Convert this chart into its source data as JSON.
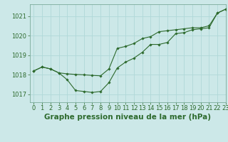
{
  "title": "Graphe pression niveau de la mer (hPa)",
  "background_color": "#cce8e8",
  "grid_color": "#b0d8d8",
  "line_color": "#2d6a2d",
  "marker_color": "#2d6a2d",
  "xlim": [
    -0.5,
    23
  ],
  "ylim": [
    1016.6,
    1021.6
  ],
  "yticks": [
    1017,
    1018,
    1019,
    1020,
    1021
  ],
  "xticks": [
    0,
    1,
    2,
    3,
    4,
    5,
    6,
    7,
    8,
    9,
    10,
    11,
    12,
    13,
    14,
    15,
    16,
    17,
    18,
    19,
    20,
    21,
    22,
    23
  ],
  "series1_x": [
    0,
    1,
    2,
    3,
    4,
    5,
    6,
    7,
    8,
    9,
    10,
    11,
    12,
    13,
    14,
    15,
    16,
    17,
    18,
    19,
    20,
    21,
    22,
    23
  ],
  "series1_y": [
    1018.2,
    1018.4,
    1018.3,
    1018.1,
    1017.75,
    1017.2,
    1017.15,
    1017.1,
    1017.15,
    1017.6,
    1018.35,
    1018.65,
    1018.85,
    1019.15,
    1019.55,
    1019.55,
    1019.65,
    1020.1,
    1020.15,
    1020.3,
    1020.35,
    1020.4,
    1021.15,
    1021.35
  ],
  "series2_x": [
    0,
    1,
    2,
    3,
    4,
    5,
    6,
    7,
    8,
    9,
    10,
    11,
    12,
    13,
    14,
    15,
    16,
    17,
    18,
    19,
    20,
    21,
    22,
    23
  ],
  "series2_y": [
    1018.2,
    1018.4,
    1018.3,
    1018.1,
    1018.05,
    1018.02,
    1018.0,
    1017.97,
    1017.95,
    1018.3,
    1019.35,
    1019.45,
    1019.6,
    1019.85,
    1019.95,
    1020.2,
    1020.25,
    1020.3,
    1020.35,
    1020.4,
    1020.4,
    1020.5,
    1021.15,
    1021.35
  ],
  "title_fontsize": 7.5,
  "tick_fontsize": 6.0,
  "linewidth": 0.8,
  "markersize": 1.8
}
